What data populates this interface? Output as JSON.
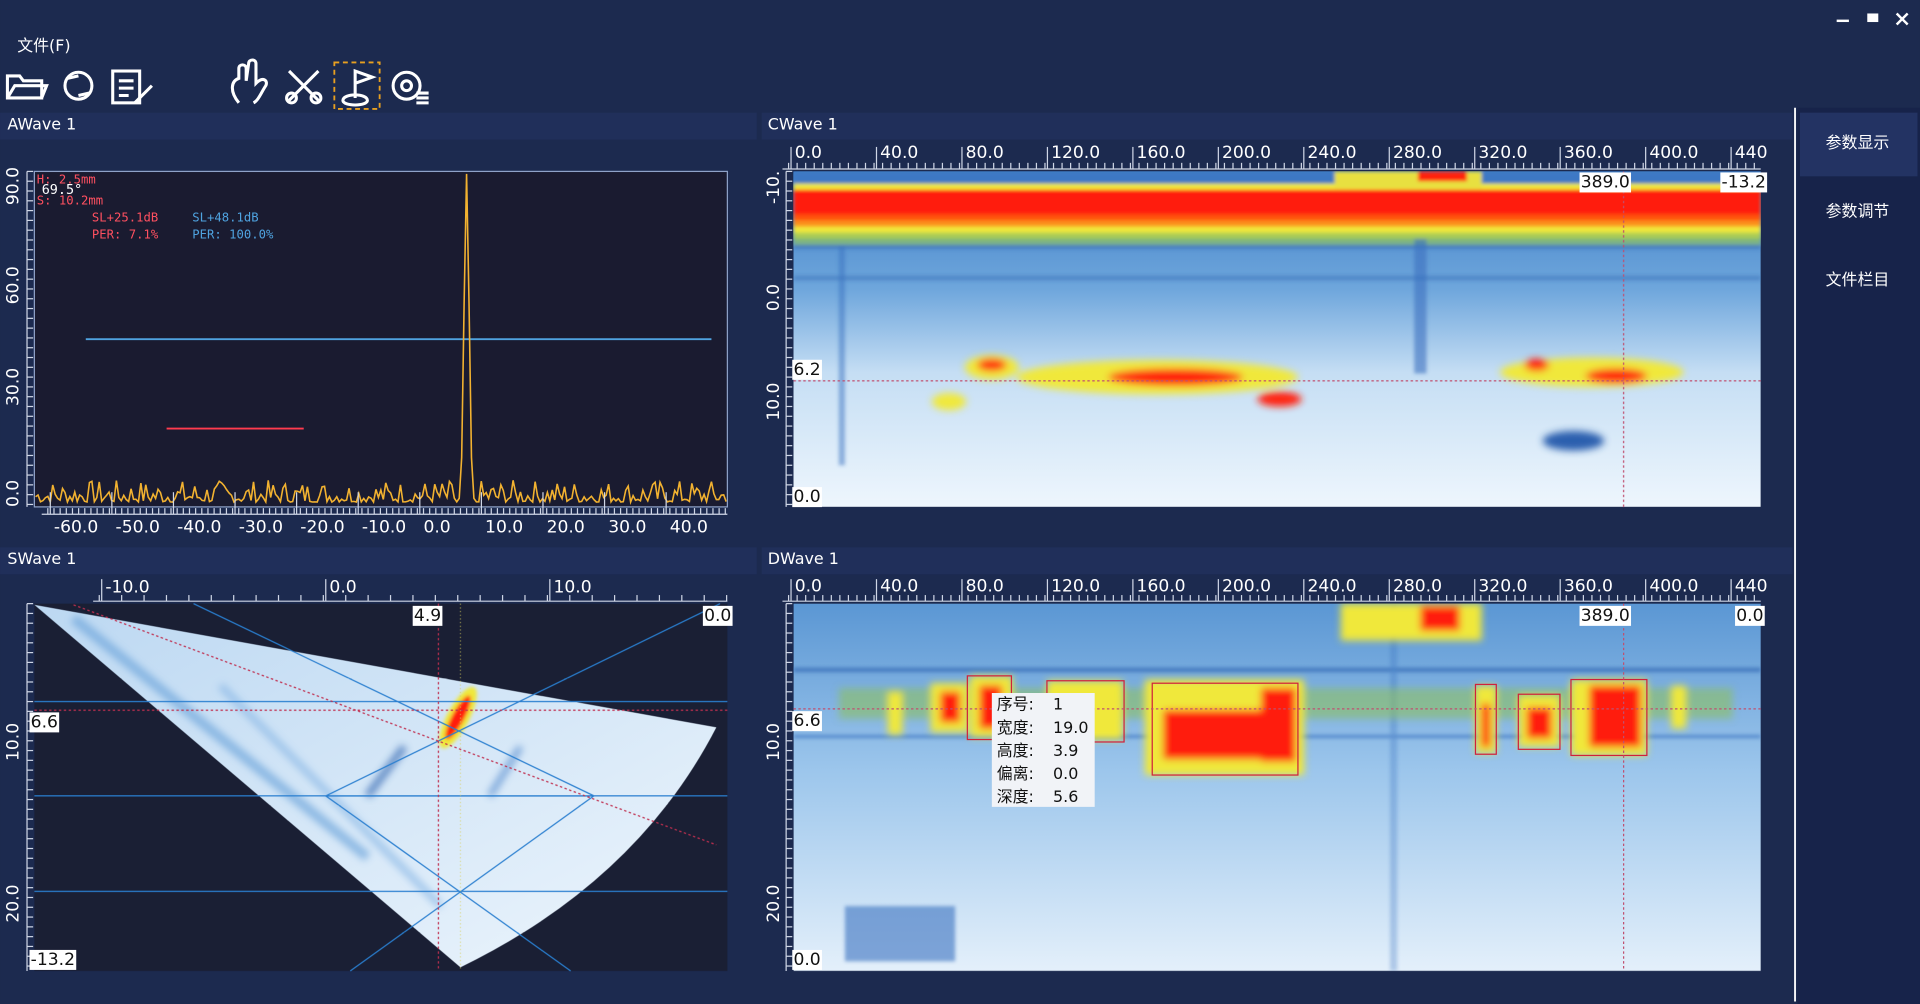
{
  "window": {
    "menu": "文件(F)"
  },
  "sidebar": [
    "参数显示",
    "参数调节",
    "文件栏目"
  ],
  "awave": {
    "title": "AWave 1",
    "info": [
      "H: 2.5mm",
      "69.5°",
      "S: 10.2mm"
    ],
    "gate_a": [
      "SL+25.1dB",
      "PER: 7.1%"
    ],
    "gate_b": [
      "SL+48.1dB",
      "PER: 100.0%"
    ],
    "x_ticks": [
      "-60.0",
      "-50.0",
      "-40.0",
      "-30.0",
      "-20.0",
      "-10.0",
      "0.0",
      "10.0",
      "20.0",
      "30.0",
      "40.0"
    ],
    "y_ticks": [
      "90.0",
      "60.0",
      "30.0",
      "0.0"
    ]
  },
  "cwave": {
    "title": "CWave 1",
    "x_ticks": [
      "0.0",
      "40.0",
      "80.0",
      "120.0",
      "160.0",
      "200.0",
      "240.0",
      "280.0",
      "320.0",
      "360.0",
      "400.0",
      "440"
    ],
    "y_ticks": [
      "-10.",
      "0.0",
      "10.0"
    ],
    "cursor_x": "389.0",
    "corner": "-13.2",
    "cursor_y": "6.2",
    "bottom": "0.0"
  },
  "swave": {
    "title": "SWave 1",
    "x_ticks": [
      "-10.0",
      "0.0",
      "10.0"
    ],
    "y_ticks": [
      "10.0",
      "20.0"
    ],
    "cursor_y": "6.6",
    "bottom": "-13.2",
    "cursor_x": "4.9",
    "corner": "0.0"
  },
  "dwave": {
    "title": "DWave 1",
    "x_ticks": [
      "0.0",
      "40.0",
      "80.0",
      "120.0",
      "160.0",
      "200.0",
      "240.0",
      "280.0",
      "320.0",
      "360.0",
      "400.0",
      "440"
    ],
    "y_ticks": [
      "10.0",
      "20.0"
    ],
    "cursor_x": "389.0",
    "corner": "0.0",
    "cursor_y": "6.6",
    "bottom": "0.0",
    "tooltip": [
      [
        "序号:",
        "1"
      ],
      [
        "宽度:",
        "19.0"
      ],
      [
        "高度:",
        "3.9"
      ],
      [
        "偏离:",
        "0.0"
      ],
      [
        "深度:",
        "5.6"
      ]
    ]
  }
}
